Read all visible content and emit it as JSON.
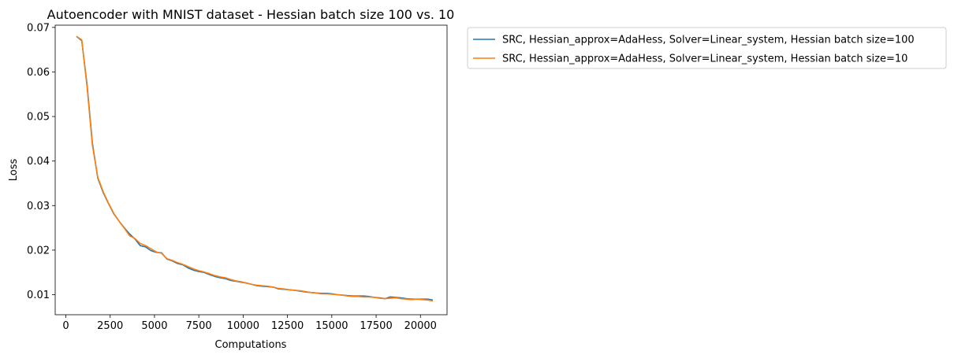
{
  "chart_data": {
    "type": "line",
    "title": "Autoencoder with MNIST dataset - Hessian batch size 100 vs. 10",
    "xlabel": "Computations",
    "ylabel": "Loss",
    "xlim": [
      -600,
      21500
    ],
    "ylim": [
      0.0055,
      0.0705
    ],
    "xticks": [
      0,
      2500,
      5000,
      7500,
      10000,
      12500,
      15000,
      17500,
      20000
    ],
    "xtick_labels": [
      "0",
      "2500",
      "5000",
      "7500",
      "10000",
      "12500",
      "15000",
      "17500",
      "20000"
    ],
    "yticks": [
      0.01,
      0.02,
      0.03,
      0.04,
      0.05,
      0.06,
      0.07
    ],
    "ytick_labels": [
      "0.01",
      "0.02",
      "0.03",
      "0.04",
      "0.05",
      "0.06",
      "0.07"
    ],
    "grid": false,
    "legend_placement": "outside upper right",
    "series": [
      {
        "name": "SRC, Hessian_approx=AdaHess, Solver=Linear_system, Hessian batch size=100",
        "color": "#1f77b4",
        "x": [
          600,
          900,
          1200,
          1500,
          1800,
          2100,
          2400,
          2700,
          3000,
          3300,
          3600,
          3900,
          4200,
          4500,
          4800,
          5100,
          5400,
          5700,
          6000,
          6300,
          6600,
          6900,
          7200,
          7500,
          7800,
          8100,
          8400,
          8700,
          9000,
          9300,
          9600,
          9900,
          10200,
          10500,
          10800,
          11100,
          11400,
          11700,
          12000,
          12300,
          12600,
          12900,
          13200,
          13500,
          13800,
          14100,
          14400,
          14700,
          15000,
          15300,
          15600,
          15900,
          16200,
          16500,
          16800,
          17100,
          17400,
          17700,
          18000,
          18300,
          18600,
          18900,
          19200,
          19500,
          19800,
          20100,
          20400,
          20700
        ],
        "y": [
          0.068,
          0.067,
          0.057,
          0.044,
          0.0362,
          0.033,
          0.0305,
          0.0282,
          0.0265,
          0.025,
          0.0236,
          0.0225,
          0.021,
          0.0207,
          0.0199,
          0.0195,
          0.0194,
          0.018,
          0.0176,
          0.017,
          0.0167,
          0.016,
          0.0155,
          0.0152,
          0.015,
          0.0145,
          0.0141,
          0.0138,
          0.0136,
          0.0132,
          0.013,
          0.0128,
          0.0126,
          0.0123,
          0.012,
          0.0119,
          0.0118,
          0.0117,
          0.0113,
          0.0112,
          0.0111,
          0.011,
          0.0108,
          0.0106,
          0.0105,
          0.0104,
          0.0103,
          0.0103,
          0.0102,
          0.01,
          0.0099,
          0.0098,
          0.0097,
          0.0097,
          0.0097,
          0.0096,
          0.0094,
          0.0093,
          0.0091,
          0.0095,
          0.0094,
          0.0093,
          0.0091,
          0.009,
          0.009,
          0.009,
          0.009,
          0.0088
        ]
      },
      {
        "name": "SRC, Hessian_approx=AdaHess, Solver=Linear_system, Hessian batch size=10",
        "color": "#ff7f0e",
        "x": [
          600,
          900,
          1200,
          1500,
          1800,
          2100,
          2400,
          2700,
          3000,
          3300,
          3600,
          3900,
          4200,
          4500,
          4800,
          5100,
          5400,
          5700,
          6000,
          6300,
          6600,
          6900,
          7200,
          7500,
          7800,
          8100,
          8400,
          8700,
          9000,
          9300,
          9600,
          9900,
          10200,
          10500,
          10800,
          11100,
          11400,
          11700,
          12000,
          12300,
          12600,
          12900,
          13200,
          13500,
          13800,
          14100,
          14400,
          14700,
          15000,
          15300,
          15600,
          15900,
          16200,
          16500,
          16800,
          17100,
          17400,
          17700,
          18000,
          18300,
          18600,
          18900,
          19200,
          19500,
          19800,
          20100,
          20400,
          20700
        ],
        "y": [
          0.068,
          0.0672,
          0.0565,
          0.0435,
          0.0364,
          0.0332,
          0.0306,
          0.0283,
          0.0265,
          0.0249,
          0.0232,
          0.0226,
          0.0215,
          0.021,
          0.0203,
          0.0196,
          0.0193,
          0.0181,
          0.0177,
          0.0172,
          0.0168,
          0.0163,
          0.0158,
          0.0154,
          0.0151,
          0.0147,
          0.0143,
          0.014,
          0.0138,
          0.0134,
          0.0131,
          0.0129,
          0.0126,
          0.0123,
          0.0121,
          0.012,
          0.0119,
          0.0117,
          0.0114,
          0.0113,
          0.0111,
          0.011,
          0.0109,
          0.0107,
          0.0105,
          0.0104,
          0.0102,
          0.0102,
          0.0101,
          0.01,
          0.0099,
          0.0097,
          0.0096,
          0.0096,
          0.0095,
          0.0095,
          0.0094,
          0.0092,
          0.0091,
          0.0092,
          0.0093,
          0.0091,
          0.009,
          0.0089,
          0.009,
          0.0089,
          0.0088,
          0.0086
        ]
      }
    ]
  }
}
